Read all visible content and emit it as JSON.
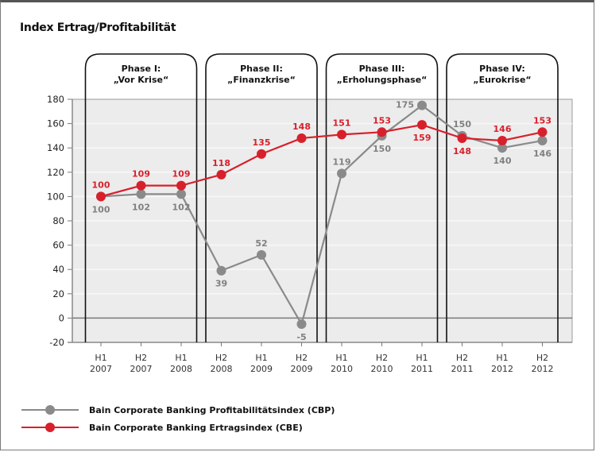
{
  "title": "Index Ertrag/Profitabilität",
  "chart_data": {
    "type": "line",
    "title": "Index Ertrag/Profitabilität",
    "xlabel": "",
    "ylabel": "",
    "ylim": [
      -20,
      180
    ],
    "yticks": [
      "180",
      "160",
      "140",
      "120",
      "100",
      "80",
      "60",
      "40",
      "20",
      "0",
      "-20"
    ],
    "ytick_values": [
      180,
      160,
      140,
      120,
      100,
      80,
      60,
      40,
      20,
      0,
      -20
    ],
    "grid": true,
    "legend_position": "bottom-left",
    "categories": [
      {
        "half": "H1",
        "year": "2007"
      },
      {
        "half": "H2",
        "year": "2007"
      },
      {
        "half": "H1",
        "year": "2008"
      },
      {
        "half": "H2",
        "year": "2008"
      },
      {
        "half": "H1",
        "year": "2009"
      },
      {
        "half": "H2",
        "year": "2009"
      },
      {
        "half": "H1",
        "year": "2010"
      },
      {
        "half": "H2",
        "year": "2010"
      },
      {
        "half": "H1",
        "year": "2011"
      },
      {
        "half": "H2",
        "year": "2011"
      },
      {
        "half": "H1",
        "year": "2012"
      },
      {
        "half": "H2",
        "year": "2012"
      }
    ],
    "series": [
      {
        "name": "Bain Corporate Banking Profitabilitätsindex (CBP)",
        "color": "#8a8a8a",
        "values": [
          100,
          102,
          102,
          39,
          52,
          -5,
          119,
          150,
          175,
          150,
          140,
          146
        ],
        "label_positions": [
          "below",
          "below",
          "below",
          "below",
          "above",
          "below",
          "above",
          "below",
          "left",
          "above",
          "below",
          "below"
        ]
      },
      {
        "name": "Bain Corporate Banking Ertragsindex (CBE)",
        "color": "#d8202c",
        "values": [
          100,
          109,
          109,
          118,
          135,
          148,
          151,
          153,
          159,
          148,
          146,
          153
        ],
        "label_positions": [
          "above",
          "above",
          "above",
          "above",
          "above",
          "above",
          "above",
          "above",
          "below",
          "below",
          "above",
          "above"
        ]
      }
    ],
    "phases": [
      {
        "line1": "Phase I:",
        "line2": "„Vor Krise“",
        "from": 0,
        "to": 2
      },
      {
        "line1": "Phase II:",
        "line2": "„Finanzkrise“",
        "from": 3,
        "to": 5
      },
      {
        "line1": "Phase III:",
        "line2": "„Erholungsphase“",
        "from": 6,
        "to": 8
      },
      {
        "line1": "Phase IV:",
        "line2": "„Eurokrise“",
        "from": 9,
        "to": 11
      }
    ]
  },
  "legend": [
    {
      "label": "Bain Corporate Banking Profitabilitätsindex (CBP)",
      "color": "#8a8a8a"
    },
    {
      "label": "Bain Corporate Banking Ertragsindex (CBE)",
      "color": "#d8202c"
    }
  ]
}
